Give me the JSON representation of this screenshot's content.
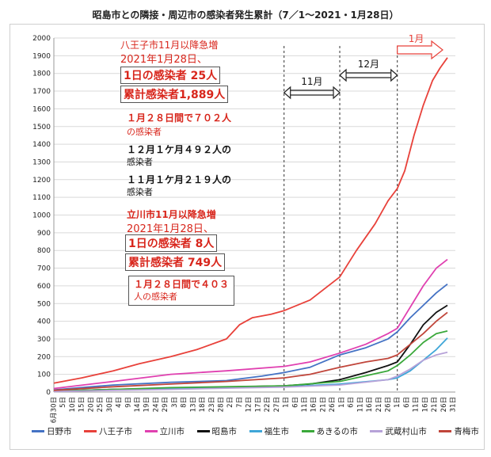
{
  "title": "昭島市との隣接・周辺市の感染者発生累計（7／1～2021・1月28日）",
  "chart_data": {
    "type": "line",
    "ylim": [
      0,
      2000
    ],
    "yticks": [
      0,
      100,
      200,
      300,
      400,
      500,
      600,
      700,
      800,
      900,
      1000,
      1100,
      1200,
      1300,
      1400,
      1500,
      1600,
      1700,
      1800,
      1900,
      2000
    ],
    "x_range": [
      "2020-06-30",
      "2021-01-28"
    ],
    "month_markers": [
      {
        "label": "11月",
        "date": "2020-11-01"
      },
      {
        "label": "12月",
        "date": "2020-12-01"
      },
      {
        "label": "1月",
        "date": "2021-01-01"
      }
    ],
    "series": [
      {
        "name": "日野市",
        "color": "#4472c4",
        "points": [
          [
            "2020-06-30",
            12
          ],
          [
            "2020-08-01",
            40
          ],
          [
            "2020-09-01",
            55
          ],
          [
            "2020-10-01",
            65
          ],
          [
            "2020-10-20",
            90
          ],
          [
            "2020-11-01",
            110
          ],
          [
            "2020-11-15",
            140
          ],
          [
            "2020-12-01",
            210
          ],
          [
            "2020-12-15",
            250
          ],
          [
            "2020-12-27",
            300
          ],
          [
            "2021-01-01",
            340
          ],
          [
            "2021-01-08",
            420
          ],
          [
            "2021-01-15",
            490
          ],
          [
            "2021-01-22",
            560
          ],
          [
            "2021-01-28",
            610
          ]
        ]
      },
      {
        "name": "八王子市",
        "color": "#e8413a",
        "points": [
          [
            "2020-06-30",
            50
          ],
          [
            "2020-07-15",
            80
          ],
          [
            "2020-08-01",
            120
          ],
          [
            "2020-08-15",
            160
          ],
          [
            "2020-09-01",
            200
          ],
          [
            "2020-09-15",
            240
          ],
          [
            "2020-10-01",
            300
          ],
          [
            "2020-10-08",
            380
          ],
          [
            "2020-10-15",
            420
          ],
          [
            "2020-10-25",
            440
          ],
          [
            "2020-11-01",
            460
          ],
          [
            "2020-11-15",
            520
          ],
          [
            "2020-12-01",
            650
          ],
          [
            "2020-12-10",
            800
          ],
          [
            "2020-12-20",
            950
          ],
          [
            "2020-12-27",
            1080
          ],
          [
            "2021-01-01",
            1150
          ],
          [
            "2021-01-05",
            1250
          ],
          [
            "2021-01-10",
            1450
          ],
          [
            "2021-01-15",
            1620
          ],
          [
            "2021-01-20",
            1760
          ],
          [
            "2021-01-24",
            1830
          ],
          [
            "2021-01-28",
            1889
          ]
        ]
      },
      {
        "name": "立川市",
        "color": "#e040b0",
        "points": [
          [
            "2020-06-30",
            20
          ],
          [
            "2020-08-01",
            60
          ],
          [
            "2020-09-01",
            100
          ],
          [
            "2020-10-01",
            120
          ],
          [
            "2020-11-01",
            145
          ],
          [
            "2020-11-15",
            170
          ],
          [
            "2020-12-01",
            220
          ],
          [
            "2020-12-15",
            270
          ],
          [
            "2020-12-27",
            330
          ],
          [
            "2021-01-01",
            360
          ],
          [
            "2021-01-08",
            480
          ],
          [
            "2021-01-15",
            600
          ],
          [
            "2021-01-22",
            700
          ],
          [
            "2021-01-28",
            749
          ]
        ]
      },
      {
        "name": "昭島市",
        "color": "#111111",
        "points": [
          [
            "2020-06-30",
            5
          ],
          [
            "2020-08-01",
            15
          ],
          [
            "2020-09-01",
            22
          ],
          [
            "2020-10-01",
            28
          ],
          [
            "2020-11-01",
            35
          ],
          [
            "2020-11-15",
            45
          ],
          [
            "2020-12-01",
            70
          ],
          [
            "2020-12-15",
            110
          ],
          [
            "2020-12-27",
            150
          ],
          [
            "2021-01-01",
            170
          ],
          [
            "2021-01-08",
            270
          ],
          [
            "2021-01-15",
            380
          ],
          [
            "2021-01-22",
            450
          ],
          [
            "2021-01-28",
            490
          ]
        ]
      },
      {
        "name": "福生市",
        "color": "#3fa6d8",
        "points": [
          [
            "2020-06-30",
            5
          ],
          [
            "2020-08-01",
            15
          ],
          [
            "2020-09-01",
            20
          ],
          [
            "2020-10-01",
            25
          ],
          [
            "2020-11-01",
            30
          ],
          [
            "2020-12-01",
            45
          ],
          [
            "2020-12-27",
            70
          ],
          [
            "2021-01-01",
            80
          ],
          [
            "2021-01-08",
            120
          ],
          [
            "2021-01-15",
            180
          ],
          [
            "2021-01-22",
            240
          ],
          [
            "2021-01-28",
            305
          ]
        ]
      },
      {
        "name": "あきるの市",
        "color": "#3aa83a",
        "points": [
          [
            "2020-06-30",
            5
          ],
          [
            "2020-08-01",
            15
          ],
          [
            "2020-09-01",
            25
          ],
          [
            "2020-10-01",
            30
          ],
          [
            "2020-11-01",
            35
          ],
          [
            "2020-12-01",
            60
          ],
          [
            "2020-12-27",
            120
          ],
          [
            "2021-01-01",
            150
          ],
          [
            "2021-01-08",
            210
          ],
          [
            "2021-01-15",
            280
          ],
          [
            "2021-01-22",
            330
          ],
          [
            "2021-01-28",
            345
          ]
        ]
      },
      {
        "name": "武蔵村山市",
        "color": "#b7a2d8",
        "points": [
          [
            "2020-06-30",
            3
          ],
          [
            "2020-08-01",
            10
          ],
          [
            "2020-09-01",
            15
          ],
          [
            "2020-10-01",
            22
          ],
          [
            "2020-11-01",
            28
          ],
          [
            "2020-12-01",
            40
          ],
          [
            "2020-12-27",
            70
          ],
          [
            "2021-01-01",
            90
          ],
          [
            "2021-01-08",
            130
          ],
          [
            "2021-01-15",
            180
          ],
          [
            "2021-01-22",
            210
          ],
          [
            "2021-01-28",
            225
          ]
        ]
      },
      {
        "name": "青梅市",
        "color": "#c0453a",
        "points": [
          [
            "2020-06-30",
            10
          ],
          [
            "2020-08-01",
            30
          ],
          [
            "2020-09-01",
            45
          ],
          [
            "2020-10-01",
            60
          ],
          [
            "2020-11-01",
            80
          ],
          [
            "2020-11-15",
            100
          ],
          [
            "2020-12-01",
            140
          ],
          [
            "2020-12-15",
            170
          ],
          [
            "2020-12-27",
            190
          ],
          [
            "2021-01-01",
            210
          ],
          [
            "2021-01-08",
            270
          ],
          [
            "2021-01-15",
            330
          ],
          [
            "2021-01-22",
            400
          ],
          [
            "2021-01-28",
            450
          ]
        ]
      }
    ]
  },
  "annotations": {
    "hachioji_head": "八王子市11月以降急増",
    "hachioji_date": "2021年1月28日、",
    "hachioji_day": "1日の感染者 25人",
    "hachioji_total": "累計感染者1,889人",
    "hachioji_28": "１月２８日間で７０２人",
    "hachioji_28b": "の感染者",
    "dec_1": "１２月１ケ月４９２人の",
    "dec_2": "感染者",
    "nov_1": "１１月１ケ月２１９人の",
    "nov_2": "感染者",
    "tachikawa_head": "立川市11月以降急増",
    "tachikawa_date": "2021年1月28日、",
    "tachikawa_day": "1日の感染者 8人",
    "tachikawa_total": "累計感染者 749人",
    "tachikawa_28a": "１月２８日間で４０３",
    "tachikawa_28b": "人の感染者"
  }
}
